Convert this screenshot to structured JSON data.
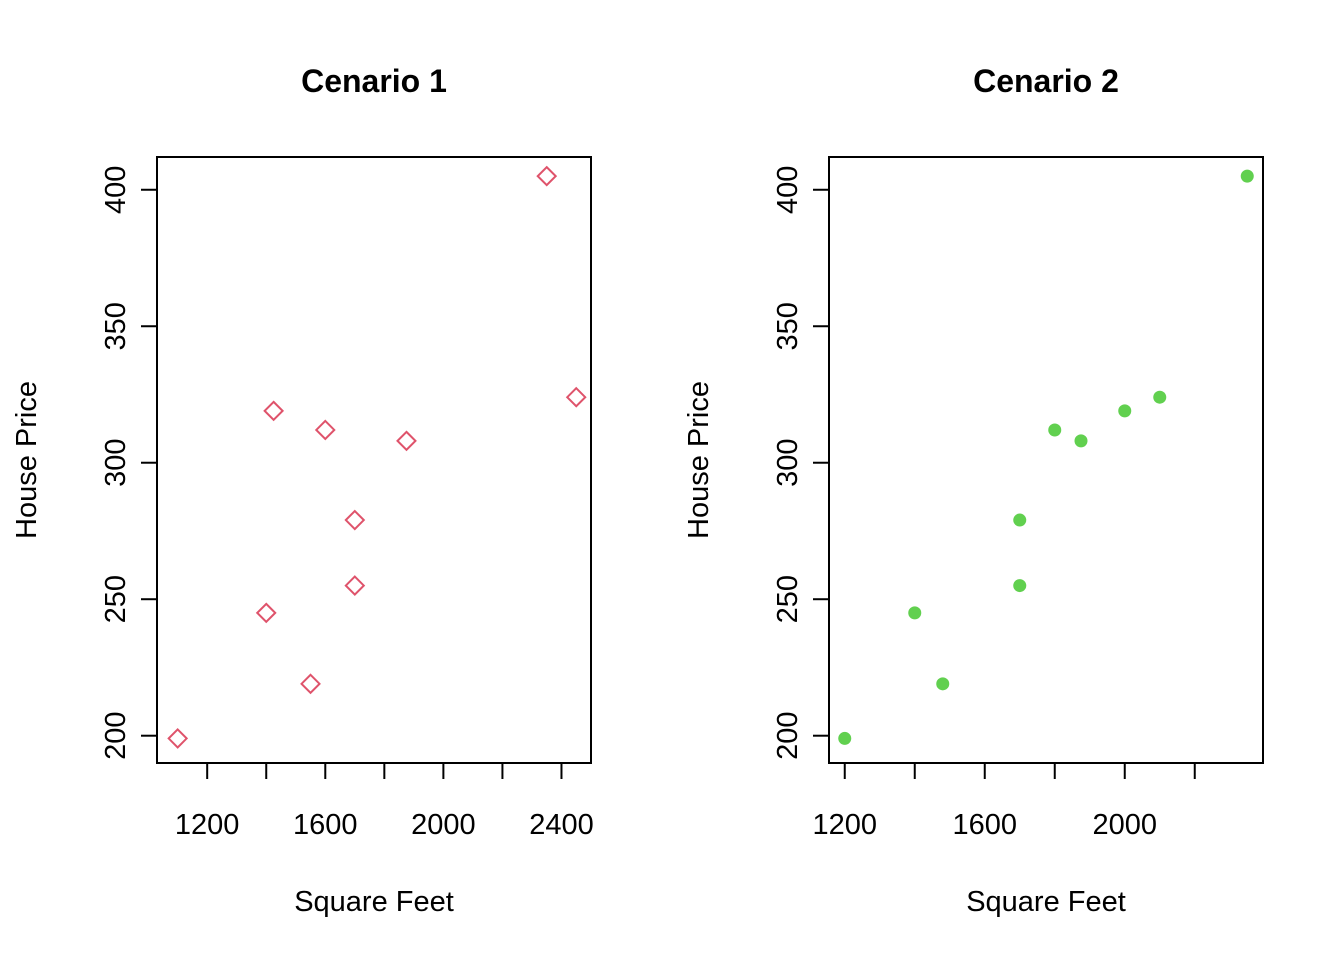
{
  "chart_data": [
    {
      "type": "scatter",
      "title": "Cenario 1",
      "xlabel": "Square Feet",
      "ylabel": "House Price",
      "xlim": [
        1030,
        2500
      ],
      "ylim": [
        190,
        412
      ],
      "x_ticks": [
        1200,
        1400,
        1600,
        1800,
        2000,
        2200,
        2400
      ],
      "x_tick_labels": [
        "1200",
        "",
        "1600",
        "",
        "2000",
        "",
        "2400"
      ],
      "y_ticks": [
        200,
        250,
        300,
        350,
        400
      ],
      "y_tick_labels": [
        "200",
        "250",
        "300",
        "350",
        "400"
      ],
      "marker": "open-diamond",
      "color": "#df536b",
      "x": [
        1100,
        1400,
        1425,
        1550,
        1600,
        1700,
        1700,
        1875,
        2350,
        2450
      ],
      "y": [
        199,
        245,
        319,
        219,
        312,
        279,
        255,
        308,
        405,
        324
      ]
    },
    {
      "type": "scatter",
      "title": "Cenario 2",
      "xlabel": "Square Feet",
      "ylabel": "House Price",
      "xlim": [
        1155,
        2395
      ],
      "ylim": [
        190,
        412
      ],
      "x_ticks": [
        1200,
        1400,
        1600,
        1800,
        2000,
        2200
      ],
      "x_tick_labels": [
        "1200",
        "",
        "1600",
        "",
        "2000",
        ""
      ],
      "y_ticks": [
        200,
        250,
        300,
        350,
        400
      ],
      "y_tick_labels": [
        "200",
        "250",
        "300",
        "350",
        "400"
      ],
      "marker": "filled-circle",
      "color": "#61d04f",
      "x": [
        1200,
        1400,
        1480,
        1700,
        1700,
        1800,
        1875,
        2000,
        2100,
        2350
      ],
      "y": [
        199,
        245,
        219,
        279,
        255,
        312,
        308,
        319,
        324,
        405
      ]
    }
  ]
}
